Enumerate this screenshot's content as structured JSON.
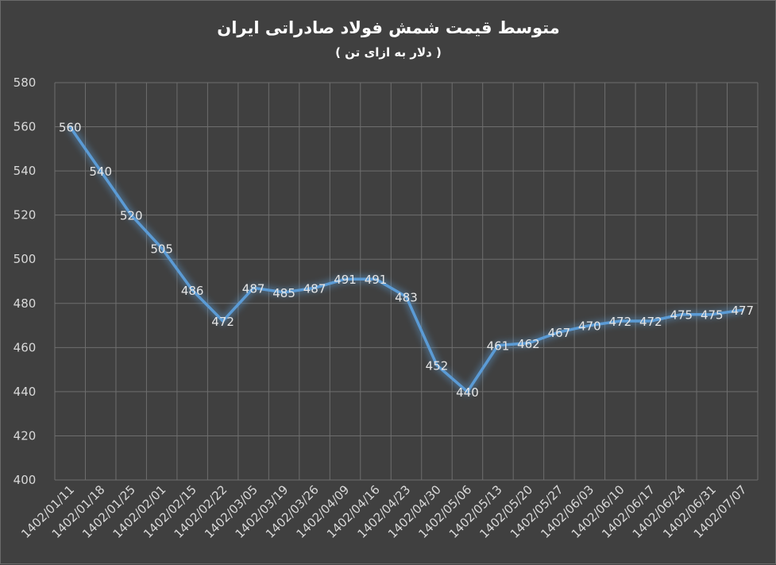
{
  "chart_data": {
    "type": "line",
    "title": "متوسط قیمت شمش فولاد صادراتی ایران",
    "subtitle": "( دلار به ازای تن )",
    "xlabel": "",
    "ylabel": "",
    "ylim": [
      400,
      580
    ],
    "yticks": [
      400,
      420,
      440,
      460,
      480,
      500,
      520,
      540,
      560,
      580
    ],
    "grid": true,
    "legend": "none",
    "categories": [
      "1402/01/11",
      "1402/01/18",
      "1402/01/25",
      "1402/02/01",
      "1402/02/15",
      "1402/02/22",
      "1402/03/05",
      "1402/03/19",
      "1402/03/26",
      "1402/04/09",
      "1402/04/16",
      "1402/04/23",
      "1402/04/30",
      "1402/05/06",
      "1402/05/13",
      "1402/05/20",
      "1402/05/27",
      "1402/06/03",
      "1402/06/10",
      "1402/06/17",
      "1402/06/24",
      "1402/06/31",
      "1402/07/07"
    ],
    "series": [
      {
        "values": [
          560,
          540,
          520,
          505,
          486,
          472,
          487,
          485,
          487,
          491,
          491,
          483,
          452,
          440,
          461,
          462,
          467,
          470,
          472,
          472,
          475,
          475,
          477
        ]
      }
    ],
    "colors": {
      "background": "#404040",
      "line": "#5b9bd5",
      "glow": "#5b9bd5",
      "grid": "#6e6e6e",
      "text": "#d9d9d9"
    }
  }
}
